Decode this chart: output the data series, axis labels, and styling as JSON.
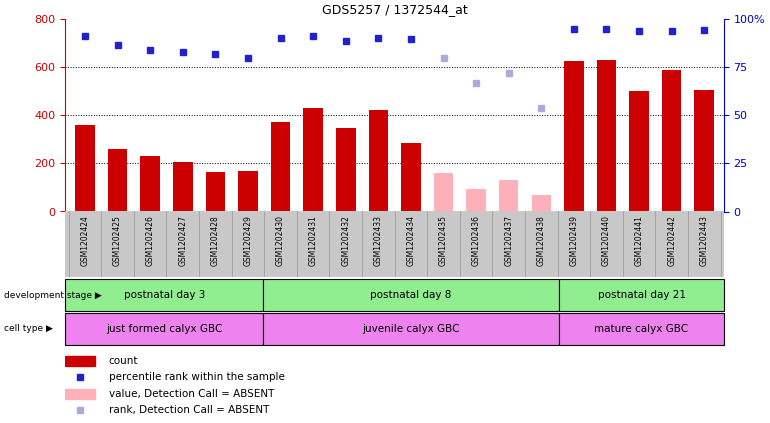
{
  "title": "GDS5257 / 1372544_at",
  "samples": [
    "GSM1202424",
    "GSM1202425",
    "GSM1202426",
    "GSM1202427",
    "GSM1202428",
    "GSM1202429",
    "GSM1202430",
    "GSM1202431",
    "GSM1202432",
    "GSM1202433",
    "GSM1202434",
    "GSM1202435",
    "GSM1202436",
    "GSM1202437",
    "GSM1202438",
    "GSM1202439",
    "GSM1202440",
    "GSM1202441",
    "GSM1202442",
    "GSM1202443"
  ],
  "count_values": [
    360,
    260,
    230,
    205,
    165,
    170,
    370,
    430,
    345,
    420,
    285,
    null,
    null,
    null,
    null,
    625,
    630,
    500,
    590,
    505
  ],
  "absent_count_values": [
    null,
    null,
    null,
    null,
    null,
    null,
    null,
    null,
    null,
    null,
    null,
    160,
    95,
    130,
    70,
    null,
    null,
    null,
    null,
    null
  ],
  "percentile_values": [
    730,
    690,
    670,
    665,
    655,
    640,
    720,
    730,
    710,
    720,
    715,
    null,
    null,
    null,
    null,
    760,
    760,
    750,
    750,
    755
  ],
  "absent_percentile_values": [
    null,
    null,
    null,
    null,
    null,
    null,
    null,
    null,
    null,
    null,
    null,
    640,
    535,
    575,
    430,
    null,
    null,
    null,
    null,
    null
  ],
  "ylim_left": [
    0,
    800
  ],
  "ylim_right": [
    0,
    100
  ],
  "yticks_left": [
    0,
    200,
    400,
    600,
    800
  ],
  "yticks_right": [
    0,
    25,
    50,
    75,
    100
  ],
  "bar_color": "#cc0000",
  "absent_bar_color": "#ffb0b8",
  "dot_color": "#2222cc",
  "absent_dot_color": "#aaaadd",
  "right_axis_color": "#0000cc",
  "left_axis_color": "#cc0000",
  "grid_color": "black",
  "xlabel_area_color": "#c8c8c8",
  "dev_stage_color": "#90ee90",
  "cell_type_color": "#ee82ee",
  "dev_groups": [
    {
      "label": "postnatal day 3",
      "start": 0,
      "end": 6
    },
    {
      "label": "postnatal day 8",
      "start": 6,
      "end": 15
    },
    {
      "label": "postnatal day 21",
      "start": 15,
      "end": 20
    }
  ],
  "cell_groups": [
    {
      "label": "just formed calyx GBC",
      "start": 0,
      "end": 6
    },
    {
      "label": "juvenile calyx GBC",
      "start": 6,
      "end": 15
    },
    {
      "label": "mature calyx GBC",
      "start": 15,
      "end": 20
    }
  ],
  "dev_stage_label": "development stage",
  "cell_type_label": "cell type"
}
